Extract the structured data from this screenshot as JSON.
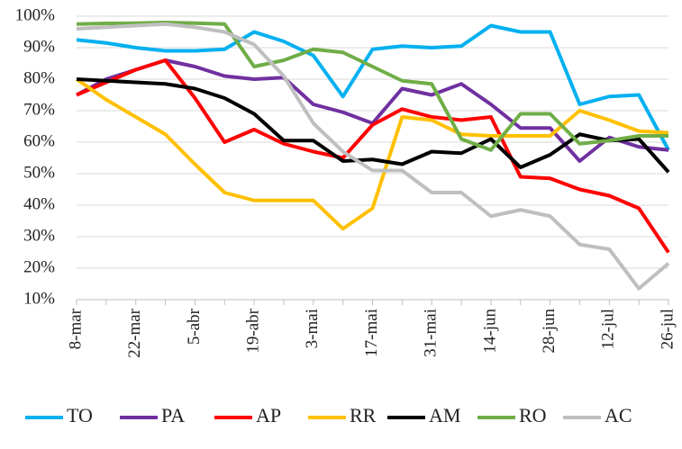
{
  "chart_data": {
    "type": "line",
    "categories": [
      "8-mar",
      null,
      "22-mar",
      null,
      "5-abr",
      null,
      "19-abr",
      null,
      "3-mai",
      null,
      "17-mai",
      null,
      "31-mai",
      null,
      "14-jun",
      null,
      "28-jun",
      null,
      "12-jul",
      null,
      "26-jul"
    ],
    "series": [
      {
        "name": "TO",
        "color": "#00b0f0",
        "values": [
          92.5,
          91.5,
          90,
          89,
          89,
          89.5,
          95,
          92,
          87.5,
          74.5,
          89.5,
          90.5,
          90,
          90.5,
          97,
          95,
          95,
          72,
          74.5,
          75,
          57.5
        ]
      },
      {
        "name": "PA",
        "color": "#7030a0",
        "values": [
          75,
          80,
          83,
          86,
          84,
          81,
          80,
          80.5,
          72,
          69.5,
          66,
          77,
          75,
          78.5,
          72,
          64.5,
          64.5,
          54,
          61.5,
          58.5,
          57.5
        ]
      },
      {
        "name": "AP",
        "color": "#ff0000",
        "values": [
          75,
          79,
          83,
          86,
          74,
          60,
          64,
          59.5,
          57,
          55,
          65.5,
          70.5,
          68,
          67,
          68,
          49,
          48.5,
          45,
          43,
          39,
          25
        ]
      },
      {
        "name": "RR",
        "color": "#ffc000",
        "values": [
          80,
          73.5,
          68,
          62.5,
          53,
          44,
          41.5,
          41.5,
          41.5,
          32.5,
          39,
          68,
          67,
          62.5,
          62,
          62,
          62,
          70,
          67,
          63.5,
          63
        ]
      },
      {
        "name": "AM",
        "color": "#000000",
        "values": [
          80,
          79.5,
          79,
          78.5,
          77,
          74,
          69,
          60.5,
          60.5,
          54,
          54.5,
          53,
          57,
          56.5,
          61,
          52,
          56,
          62.5,
          60.5,
          61,
          50.5
        ]
      },
      {
        "name": "RO",
        "color": "#70ad47",
        "values": [
          97.5,
          97.7,
          97.8,
          98,
          97.8,
          97.5,
          84,
          86,
          89.5,
          88.5,
          84,
          79.5,
          78.5,
          61,
          57.5,
          69,
          69,
          59.5,
          60.5,
          62,
          62
        ]
      },
      {
        "name": "AC",
        "color": "#bfbfbf",
        "values": [
          96,
          96.5,
          97,
          97.5,
          96.5,
          95,
          91,
          81,
          66,
          57,
          51,
          51,
          44,
          44,
          36.5,
          38.5,
          36.5,
          27.5,
          26,
          13.5,
          21.5
        ]
      }
    ],
    "ylim": [
      10,
      100
    ],
    "yticks": [
      {
        "value": 10,
        "label": "10%"
      },
      {
        "value": 20,
        "label": "20%"
      },
      {
        "value": 30,
        "label": "30%"
      },
      {
        "value": 40,
        "label": "40%"
      },
      {
        "value": 50,
        "label": "50%"
      },
      {
        "value": 60,
        "label": "60%"
      },
      {
        "value": 70,
        "label": "70%"
      },
      {
        "value": 80,
        "label": "80%"
      },
      {
        "value": 90,
        "label": "90%"
      },
      {
        "value": 100,
        "label": "100%"
      }
    ],
    "grid": true,
    "legend": "bottom"
  }
}
